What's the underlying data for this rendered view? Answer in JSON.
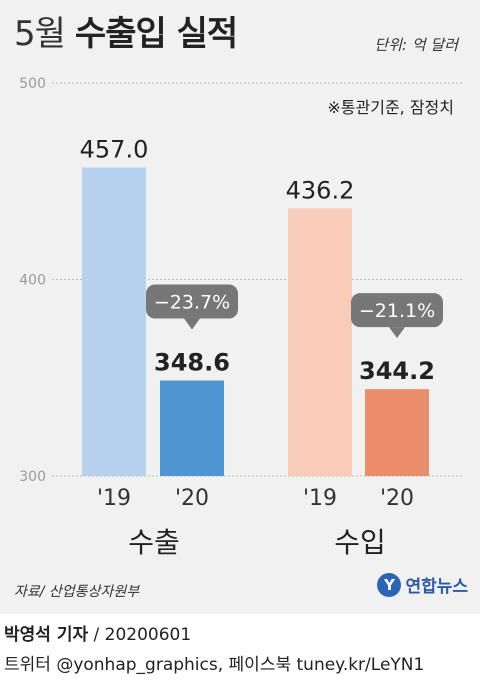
{
  "header": {
    "title_month": "5월",
    "title_main": "수출입 실적",
    "unit": "단위: 억 달러",
    "note": "※통관기준, 잠정치"
  },
  "chart_data": {
    "type": "bar",
    "title": "5월 수출입 실적",
    "ylim": [
      300,
      500
    ],
    "yticks": [
      "500",
      "400",
      "300"
    ],
    "groups": [
      {
        "name": "수출",
        "bars": [
          {
            "year": "'19",
            "value": 457.0,
            "label": "457.0",
            "color": "#b7d2ee"
          },
          {
            "year": "'20",
            "value": 348.6,
            "label": "348.6",
            "color": "#4f95d2"
          }
        ],
        "change": "−23.7%"
      },
      {
        "name": "수입",
        "bars": [
          {
            "year": "'19",
            "value": 436.2,
            "label": "436.2",
            "color": "#f8ccb9"
          },
          {
            "year": "'20",
            "value": 344.2,
            "label": "344.2",
            "color": "#e98d6b"
          }
        ],
        "change": "−21.1%"
      }
    ],
    "grid": true
  },
  "footer": {
    "source": "자료/ 산업통상자원부",
    "logo_mark": "Y",
    "logo_text": "연합뉴스",
    "reporter": "박영석 기자",
    "date": "/ 20200601",
    "twitter": "트위터 @yonhap_graphics, 페이스북 tuney.kr/LeYN1"
  }
}
